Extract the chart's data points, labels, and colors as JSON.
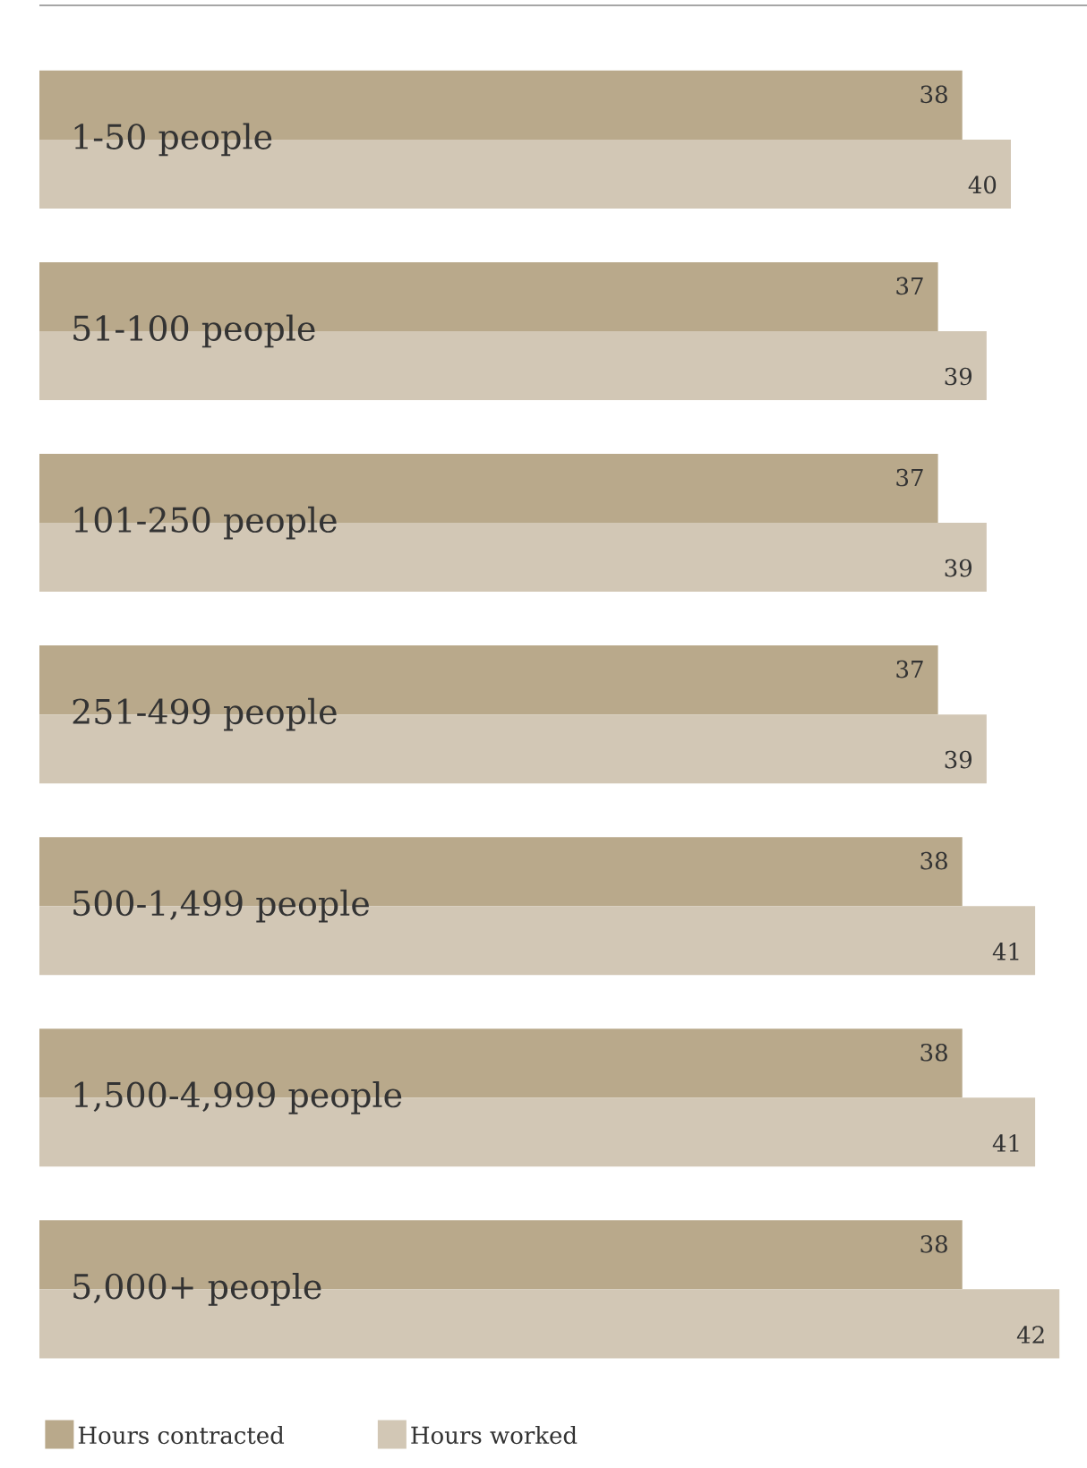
{
  "chart_data": {
    "type": "bar",
    "orientation": "horizontal",
    "categories": [
      "1-50 people",
      "51-100 people",
      "101-250 people",
      "251-499 people",
      "500-1,499 people",
      "1,500-4,999 people",
      "5,000+ people"
    ],
    "series": [
      {
        "name": "Hours contracted",
        "color": "#b9a98b",
        "values": [
          38,
          37,
          37,
          37,
          38,
          38,
          38
        ]
      },
      {
        "name": "Hours worked",
        "color": "#d2c7b5",
        "values": [
          40,
          39,
          39,
          39,
          41,
          41,
          42
        ]
      }
    ],
    "data_labels": true,
    "legend": "bottom left"
  }
}
